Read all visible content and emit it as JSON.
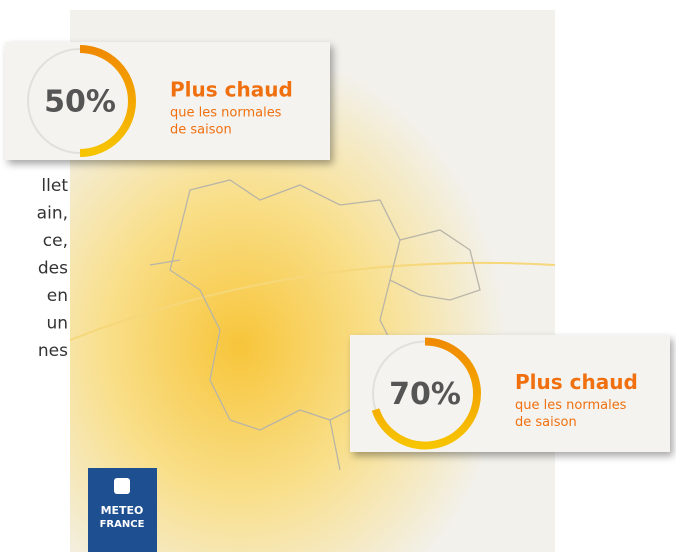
{
  "left_text": [
    "llet",
    "ain,",
    "ce,",
    "des",
    "en",
    "un",
    "nes"
  ],
  "cards": [
    {
      "value": 50,
      "label": "50%",
      "title": "Plus chaud",
      "lines": [
        "que les normales",
        "de saison"
      ]
    },
    {
      "value": 70,
      "label": "70%",
      "title": "Plus chaud",
      "lines": [
        "que les normales",
        "de saison"
      ]
    }
  ],
  "logo": [
    "METEO",
    "FRANCE"
  ]
}
